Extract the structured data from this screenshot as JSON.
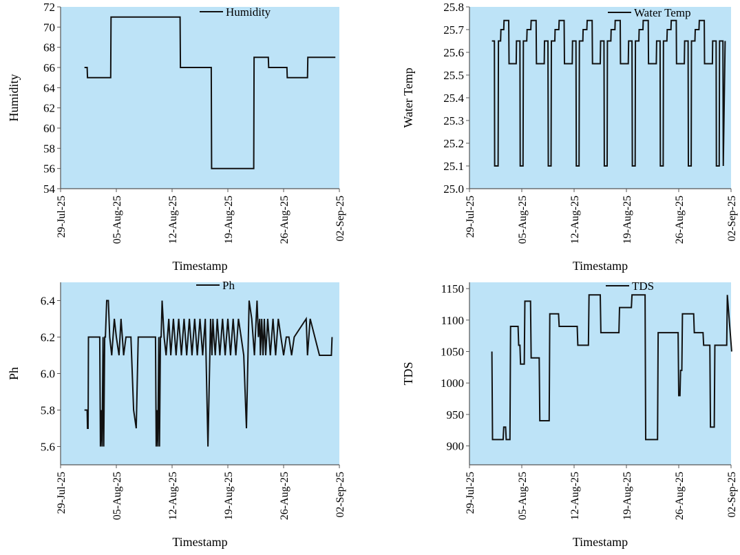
{
  "chart_data": [
    {
      "type": "line",
      "title": "",
      "xlabel": "Timestamp",
      "ylabel": "Humidity",
      "ylim": [
        54,
        72
      ],
      "yticks": [
        54,
        56,
        58,
        60,
        62,
        64,
        66,
        68,
        70,
        72
      ],
      "xlim": [
        "2025-07-29",
        "2025-09-02"
      ],
      "xticks": [
        "2025-07-29",
        "2025-08-05",
        "2025-08-12",
        "2025-08-19",
        "2025-08-26",
        "2025-09-02"
      ],
      "xtick_labels": [
        "29-Jul-25",
        "05-Aug-25",
        "12-Aug-25",
        "19-Aug-25",
        "26-Aug-25",
        "02-Sep-25"
      ],
      "grid": false,
      "legend_position": "top-center",
      "plot_background": "#bde3f7",
      "line_color": "#111111",
      "series": [
        {
          "name": "Humidity",
          "x": [
            "2025-08-01 00:00",
            "2025-08-01 08:00",
            "2025-08-01 09:00",
            "2025-08-04 07:00",
            "2025-08-04 08:00",
            "2025-08-13 00:00",
            "2025-08-13 01:00",
            "2025-08-16 22:00",
            "2025-08-16 23:00",
            "2025-08-22 06:00",
            "2025-08-22 07:00",
            "2025-08-24 02:00",
            "2025-08-24 03:00",
            "2025-08-26 10:00",
            "2025-08-26 11:00",
            "2025-08-29 00:00",
            "2025-08-29 01:00",
            "2025-09-01 12:00"
          ],
          "y": [
            66,
            66,
            65,
            65,
            71,
            71,
            66,
            66,
            56,
            56,
            67,
            67,
            66,
            66,
            65,
            65,
            67,
            67
          ]
        }
      ]
    },
    {
      "type": "line",
      "title": "",
      "xlabel": "Timestamp",
      "ylabel": "Water Temp",
      "ylim": [
        25.0,
        25.8
      ],
      "yticks": [
        25.0,
        25.1,
        25.2,
        25.3,
        25.4,
        25.5,
        25.6,
        25.7,
        25.8
      ],
      "xlim": [
        "2025-07-29",
        "2025-09-02"
      ],
      "xticks": [
        "2025-07-29",
        "2025-08-05",
        "2025-08-12",
        "2025-08-19",
        "2025-08-26",
        "2025-09-02"
      ],
      "xtick_labels": [
        "29-Jul-25",
        "05-Aug-25",
        "12-Aug-25",
        "19-Aug-25",
        "26-Aug-25",
        "02-Sep-25"
      ],
      "grid": false,
      "legend_position": "top-right",
      "plot_background": "#bde3f7",
      "line_color": "#111111",
      "series": [
        {
          "name": "Water Temp",
          "x": [
            "2025-08-01 00:00",
            "2025-08-01 08:00",
            "2025-08-01 09:00",
            "2025-08-01 20:00",
            "2025-08-01 21:00",
            "2025-08-02 04:00",
            "2025-08-02 05:00",
            "2025-08-02 14:00",
            "2025-08-02 15:00",
            "2025-08-03 06:00",
            "2025-08-03 07:00",
            "2025-08-04 06:00",
            "2025-08-04 07:00",
            "2025-08-04 18:00",
            "2025-08-04 19:00",
            "2025-08-05 04:00",
            "2025-08-05 05:00",
            "2025-08-05 16:00",
            "2025-08-05 17:00",
            "2025-08-06 05:00",
            "2025-08-06 06:00",
            "2025-08-06 22:00",
            "2025-08-06 23:00",
            "2025-08-08 00:00",
            "2025-08-08 01:00",
            "2025-08-08 12:00",
            "2025-08-08 13:00",
            "2025-08-08 22:00",
            "2025-08-08 23:00",
            "2025-08-09 10:00",
            "2025-08-09 11:00",
            "2025-08-09 23:00",
            "2025-08-10 00:00",
            "2025-08-10 16:00",
            "2025-08-10 17:00",
            "2025-08-11 18:00",
            "2025-08-11 19:00",
            "2025-08-12 06:00",
            "2025-08-12 07:00",
            "2025-08-12 16:00",
            "2025-08-12 17:00",
            "2025-08-13 04:00",
            "2025-08-13 05:00",
            "2025-08-13 17:00",
            "2025-08-13 18:00",
            "2025-08-14 10:00",
            "2025-08-14 11:00",
            "2025-08-15 12:00",
            "2025-08-15 13:00",
            "2025-08-16 00:00",
            "2025-08-16 01:00",
            "2025-08-16 10:00",
            "2025-08-16 11:00",
            "2025-08-16 22:00",
            "2025-08-16 23:00",
            "2025-08-17 11:00",
            "2025-08-17 12:00",
            "2025-08-18 04:00",
            "2025-08-18 05:00",
            "2025-08-19 06:00",
            "2025-08-19 07:00",
            "2025-08-19 18:00",
            "2025-08-19 19:00",
            "2025-08-20 04:00",
            "2025-08-20 05:00",
            "2025-08-20 16:00",
            "2025-08-20 17:00",
            "2025-08-21 05:00",
            "2025-08-21 06:00",
            "2025-08-21 22:00",
            "2025-08-21 23:00",
            "2025-08-23 00:00",
            "2025-08-23 01:00",
            "2025-08-23 12:00",
            "2025-08-23 13:00",
            "2025-08-23 22:00",
            "2025-08-23 23:00",
            "2025-08-24 10:00",
            "2025-08-24 11:00",
            "2025-08-24 23:00",
            "2025-08-25 00:00",
            "2025-08-25 16:00",
            "2025-08-25 17:00",
            "2025-08-26 18:00",
            "2025-08-26 19:00",
            "2025-08-27 06:00",
            "2025-08-27 07:00",
            "2025-08-27 16:00",
            "2025-08-27 17:00",
            "2025-08-28 04:00",
            "2025-08-28 05:00",
            "2025-08-28 17:00",
            "2025-08-28 18:00",
            "2025-08-29 10:00",
            "2025-08-29 11:00",
            "2025-08-30 12:00",
            "2025-08-30 13:00",
            "2025-08-31 00:00",
            "2025-08-31 01:00",
            "2025-08-31 10:00",
            "2025-08-31 11:00",
            "2025-08-31 22:00",
            "2025-08-31 23:00",
            "2025-09-01 05:00"
          ],
          "y": [
            25.65,
            25.65,
            25.1,
            25.1,
            25.65,
            25.65,
            25.7,
            25.7,
            25.74,
            25.74,
            25.55,
            25.55,
            25.65,
            25.65,
            25.1,
            25.1,
            25.65,
            25.65,
            25.7,
            25.7,
            25.74,
            25.74,
            25.55,
            25.55,
            25.65,
            25.65,
            25.1,
            25.1,
            25.65,
            25.65,
            25.7,
            25.7,
            25.74,
            25.74,
            25.55,
            25.55,
            25.65,
            25.65,
            25.1,
            25.1,
            25.65,
            25.65,
            25.7,
            25.7,
            25.74,
            25.74,
            25.55,
            25.55,
            25.65,
            25.65,
            25.1,
            25.1,
            25.65,
            25.65,
            25.7,
            25.7,
            25.74,
            25.74,
            25.55,
            25.55,
            25.65,
            25.65,
            25.1,
            25.1,
            25.65,
            25.65,
            25.7,
            25.7,
            25.74,
            25.74,
            25.55,
            25.55,
            25.65,
            25.65,
            25.1,
            25.1,
            25.65,
            25.65,
            25.7,
            25.7,
            25.74,
            25.74,
            25.55,
            25.55,
            25.65,
            25.65,
            25.1,
            25.1,
            25.65,
            25.65,
            25.7,
            25.7,
            25.74,
            25.74,
            25.55,
            25.55,
            25.65,
            25.65,
            25.1,
            25.1,
            25.65,
            25.65,
            25.1,
            25.65
          ]
        }
      ]
    },
    {
      "type": "line",
      "title": "",
      "xlabel": "Timestamp",
      "ylabel": "Ph",
      "ylim": [
        5.5,
        6.5
      ],
      "yticks": [
        5.6,
        5.8,
        6.0,
        6.2,
        6.4
      ],
      "xlim": [
        "2025-07-29",
        "2025-09-02"
      ],
      "xticks": [
        "2025-07-29",
        "2025-08-05",
        "2025-08-12",
        "2025-08-19",
        "2025-08-26",
        "2025-09-02"
      ],
      "xtick_labels": [
        "29-Jul-25",
        "05-Aug-25",
        "12-Aug-25",
        "19-Aug-25",
        "26-Aug-25",
        "02-Sep-25"
      ],
      "grid": false,
      "legend_position": "top-center",
      "plot_background": "#bde3f7",
      "line_color": "#111111",
      "series": [
        {
          "name": "Ph",
          "x": [
            "2025-08-01 00:00",
            "2025-08-01 08:00",
            "2025-08-01 09:00",
            "2025-08-01 11:00",
            "2025-08-01 12:00",
            "2025-08-02 22:00",
            "2025-08-03 00:00",
            "2025-08-03 03:00",
            "2025-08-03 05:00",
            "2025-08-03 08:00",
            "2025-08-03 10:00",
            "2025-08-03 13:00",
            "2025-08-03 15:00",
            "2025-08-03 19:00",
            "2025-08-04 00:00",
            "2025-08-04 04:00",
            "2025-08-04 10:00",
            "2025-08-04 18:00",
            "2025-08-05 00:00",
            "2025-08-05 08:00",
            "2025-08-05 14:00",
            "2025-08-05 22:00",
            "2025-08-06 05:00",
            "2025-08-06 12:00",
            "2025-08-06 20:00",
            "2025-08-07 04:00",
            "2025-08-07 12:00",
            "2025-08-07 18:00",
            "2025-08-08 02:00",
            "2025-08-08 06:00",
            "2025-08-08 08:00",
            "2025-08-09 22:00",
            "2025-08-10 00:00",
            "2025-08-10 03:00",
            "2025-08-10 05:00",
            "2025-08-10 08:00",
            "2025-08-10 10:00",
            "2025-08-10 13:00",
            "2025-08-10 15:00",
            "2025-08-10 18:00",
            "2025-08-11 00:00",
            "2025-08-11 06:00",
            "2025-08-11 14:00",
            "2025-08-11 20:00",
            "2025-08-12 04:00",
            "2025-08-12 12:00",
            "2025-08-12 20:00",
            "2025-08-13 04:00",
            "2025-08-13 12:00",
            "2025-08-13 20:00",
            "2025-08-14 04:00",
            "2025-08-14 12:00",
            "2025-08-14 20:00",
            "2025-08-15 04:00",
            "2025-08-15 12:00",
            "2025-08-15 20:00",
            "2025-08-16 04:00",
            "2025-08-16 12:00",
            "2025-08-16 20:00",
            "2025-08-17 00:00",
            "2025-08-17 03:00",
            "2025-08-17 06:00",
            "2025-08-17 10:00",
            "2025-08-17 16:00",
            "2025-08-18 00:00",
            "2025-08-18 08:00",
            "2025-08-18 16:00",
            "2025-08-19 00:00",
            "2025-08-19 08:00",
            "2025-08-19 16:00",
            "2025-08-20 00:00",
            "2025-08-20 08:00",
            "2025-08-20 16:00",
            "2025-08-21 00:00",
            "2025-08-21 08:00",
            "2025-08-21 16:00",
            "2025-08-22 00:00",
            "2025-08-22 08:00",
            "2025-08-22 16:00",
            "2025-08-22 20:00",
            "2025-08-23 00:00",
            "2025-08-23 02:00",
            "2025-08-23 06:00",
            "2025-08-23 10:00",
            "2025-08-23 14:00",
            "2025-08-23 18:00",
            "2025-08-24 00:00",
            "2025-08-24 08:00",
            "2025-08-24 16:00",
            "2025-08-25 00:00",
            "2025-08-25 08:00",
            "2025-08-25 16:00",
            "2025-08-26 00:00",
            "2025-08-26 08:00",
            "2025-08-26 16:00",
            "2025-08-27 00:00",
            "2025-08-27 08:00",
            "2025-08-28 20:00",
            "2025-08-29 00:00",
            "2025-08-29 08:00",
            "2025-08-30 12:00",
            "2025-08-31 12:00",
            "2025-09-01 00:00",
            "2025-09-01 02:00"
          ],
          "y": [
            5.8,
            5.8,
            5.7,
            5.7,
            6.2,
            6.2,
            5.6,
            5.8,
            5.6,
            6.2,
            5.6,
            6.2,
            6.2,
            6.4,
            6.4,
            6.2,
            6.1,
            6.3,
            6.2,
            6.1,
            6.3,
            6.1,
            6.2,
            6.2,
            6.2,
            5.8,
            5.7,
            6.2,
            6.2,
            6.2,
            6.2,
            6.2,
            5.6,
            5.8,
            5.6,
            6.2,
            5.6,
            6.2,
            6.2,
            6.4,
            6.2,
            6.1,
            6.3,
            6.1,
            6.3,
            6.1,
            6.3,
            6.1,
            6.3,
            6.1,
            6.3,
            6.1,
            6.3,
            6.1,
            6.3,
            6.1,
            6.3,
            5.6,
            6.3,
            6.1,
            6.3,
            6.2,
            6.1,
            6.3,
            6.1,
            6.3,
            6.1,
            6.3,
            6.1,
            6.3,
            6.1,
            6.3,
            6.2,
            6.1,
            5.7,
            6.4,
            6.3,
            6.1,
            6.4,
            6.2,
            6.3,
            6.1,
            6.3,
            6.1,
            6.3,
            6.1,
            6.3,
            6.1,
            6.3,
            6.1,
            6.3,
            6.2,
            6.1,
            6.2,
            6.2,
            6.1,
            6.2,
            6.3,
            6.1,
            6.3,
            6.1,
            6.1,
            6.1,
            6.2
          ]
        }
      ]
    },
    {
      "type": "line",
      "title": "",
      "xlabel": "Timestamp",
      "ylabel": "TDS",
      "ylim": [
        870,
        1160
      ],
      "yticks": [
        900,
        950,
        1000,
        1050,
        1100,
        1150
      ],
      "xlim": [
        "2025-07-29",
        "2025-09-02"
      ],
      "xticks": [
        "2025-07-29",
        "2025-08-05",
        "2025-08-12",
        "2025-08-19",
        "2025-08-26",
        "2025-09-02"
      ],
      "xtick_labels": [
        "29-Jul-25",
        "05-Aug-25",
        "12-Aug-25",
        "19-Aug-25",
        "26-Aug-25",
        "02-Sep-25"
      ],
      "grid": false,
      "legend_position": "top-center",
      "plot_background": "#bde3f7",
      "line_color": "#111111",
      "series": [
        {
          "name": "TDS",
          "x": [
            "2025-08-01 00:00",
            "2025-08-01 02:00",
            "2025-08-02 12:00",
            "2025-08-02 14:00",
            "2025-08-02 20:00",
            "2025-08-02 22:00",
            "2025-08-03 10:00",
            "2025-08-03 12:00",
            "2025-08-04 12:00",
            "2025-08-04 14:00",
            "2025-08-04 18:00",
            "2025-08-04 20:00",
            "2025-08-05 08:00",
            "2025-08-05 10:00",
            "2025-08-06 04:00",
            "2025-08-06 06:00",
            "2025-08-07 08:00",
            "2025-08-07 10:00",
            "2025-08-08 16:00",
            "2025-08-08 18:00",
            "2025-08-09 22:00",
            "2025-08-10 00:00",
            "2025-08-12 10:00",
            "2025-08-12 12:00",
            "2025-08-13 22:00",
            "2025-08-14 00:00",
            "2025-08-15 12:00",
            "2025-08-15 14:00",
            "2025-08-18 00:00",
            "2025-08-18 02:00",
            "2025-08-19 16:00",
            "2025-08-19 18:00",
            "2025-08-21 12:00",
            "2025-08-21 14:00",
            "2025-08-23 04:00",
            "2025-08-23 06:00",
            "2025-08-25 22:00",
            "2025-08-26 00:00",
            "2025-08-26 04:00",
            "2025-08-26 06:00",
            "2025-08-26 10:00",
            "2025-08-26 12:00",
            "2025-08-28 00:00",
            "2025-08-28 02:00",
            "2025-08-29 06:00",
            "2025-08-29 08:00",
            "2025-08-30 04:00",
            "2025-08-30 06:00",
            "2025-08-30 18:00",
            "2025-08-30 20:00",
            "2025-09-01 10:00",
            "2025-09-01 12:00",
            "2025-09-02 02:00"
          ],
          "y": [
            1050,
            910,
            910,
            930,
            930,
            910,
            910,
            1090,
            1090,
            1060,
            1060,
            1030,
            1030,
            1130,
            1130,
            1040,
            1040,
            940,
            940,
            1110,
            1110,
            1090,
            1090,
            1060,
            1060,
            1140,
            1140,
            1080,
            1080,
            1120,
            1120,
            1140,
            1140,
            910,
            910,
            1080,
            1080,
            980,
            980,
            1020,
            1020,
            1110,
            1110,
            1080,
            1080,
            1060,
            1060,
            930,
            930,
            1060,
            1060,
            1140,
            1050
          ]
        }
      ]
    }
  ]
}
